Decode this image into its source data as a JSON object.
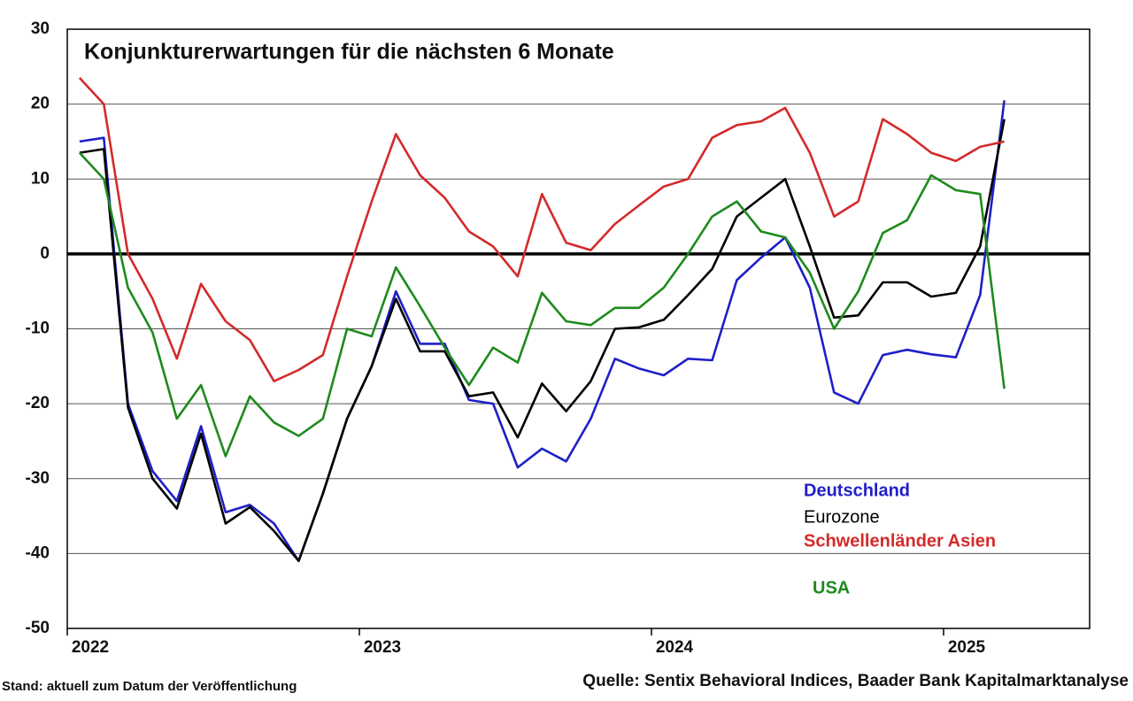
{
  "chart_data": {
    "type": "line",
    "title": "Konjunkturerwartungen für die nächsten 6 Monate",
    "footnote": "Stand: aktuell zum Datum der Veröffentlichung",
    "source": "Quelle: Sentix Behavioral Indices, Baader Bank Kapitalmarktanalyse",
    "x": [
      2022.042,
      2022.125,
      2022.208,
      2022.292,
      2022.375,
      2022.458,
      2022.542,
      2022.625,
      2022.708,
      2022.792,
      2022.875,
      2022.958,
      2023.042,
      2023.125,
      2023.208,
      2023.292,
      2023.375,
      2023.458,
      2023.542,
      2023.625,
      2023.708,
      2023.792,
      2023.875,
      2023.958,
      2024.042,
      2024.125,
      2024.208,
      2024.292,
      2024.375,
      2024.458,
      2024.542,
      2024.625,
      2024.708,
      2024.792,
      2024.875,
      2024.958,
      2025.042,
      2025.125,
      2025.208
    ],
    "xlim": [
      2022,
      2025.5
    ],
    "xticks": [
      2022,
      2023,
      2024,
      2025
    ],
    "ylim": [
      -50,
      30
    ],
    "yticks": [
      -50,
      -40,
      -30,
      -20,
      -10,
      0,
      10,
      20,
      30
    ],
    "grid": true,
    "series": [
      {
        "name": "Deutschland",
        "color": "#1f1fc8",
        "values": [
          15,
          15.5,
          -20,
          -29,
          -33,
          -23,
          -34.5,
          -33.5,
          -36,
          -41,
          -32,
          -22,
          -15,
          -5,
          -12,
          -12,
          -19.5,
          -20,
          -28.5,
          -26,
          -27.7,
          -22,
          -14,
          -15.3,
          -16.2,
          -14,
          -14.2,
          -3.5,
          -0.5,
          2.2,
          -4.5,
          -18.5,
          -20,
          -13.5,
          -12.8,
          -13.4,
          -13.8,
          -5.5,
          20.5
        ]
      },
      {
        "name": "Eurozone",
        "color": "#000000",
        "values": [
          13.5,
          14,
          -20.5,
          -30,
          -34,
          -24,
          -36,
          -33.8,
          -37,
          -41,
          -32,
          -22,
          -15,
          -6,
          -13,
          -13,
          -19,
          -18.5,
          -24.5,
          -17.3,
          -21,
          -17,
          -10,
          -9.8,
          -8.8,
          -5.5,
          -2,
          5,
          7.5,
          10,
          1,
          -8.5,
          -8.2,
          -3.8,
          -3.8,
          -5.7,
          -5.2,
          1,
          18
        ]
      },
      {
        "name": "Schwellenländer Asien",
        "color": "#d42a2a",
        "values": [
          23.5,
          20,
          0,
          -6,
          -14,
          -4,
          -9,
          -11.5,
          -17,
          -15.5,
          -13.5,
          -3,
          7,
          16,
          10.5,
          7.5,
          3,
          1,
          -3,
          8,
          1.5,
          0.5,
          4,
          6.5,
          9,
          10,
          15.5,
          17.2,
          17.7,
          19.5,
          13.5,
          5,
          7,
          18,
          16,
          13.5,
          12.4,
          14.3,
          15
        ]
      },
      {
        "name": "USA",
        "color": "#1e8a1e",
        "values": [
          13.5,
          10,
          -4.5,
          -10.5,
          -22,
          -17.5,
          -27,
          -19,
          -22.5,
          -24.3,
          -22,
          -10,
          -11,
          -1.8,
          -7,
          -12.5,
          -17.5,
          -12.5,
          -14.5,
          -5.2,
          -9,
          -9.5,
          -7.2,
          -7.2,
          -4.5,
          0,
          5,
          7,
          3,
          2.2,
          -2.5,
          -10,
          -5,
          2.8,
          4.5,
          10.5,
          8.5,
          8,
          -18
        ]
      }
    ]
  }
}
